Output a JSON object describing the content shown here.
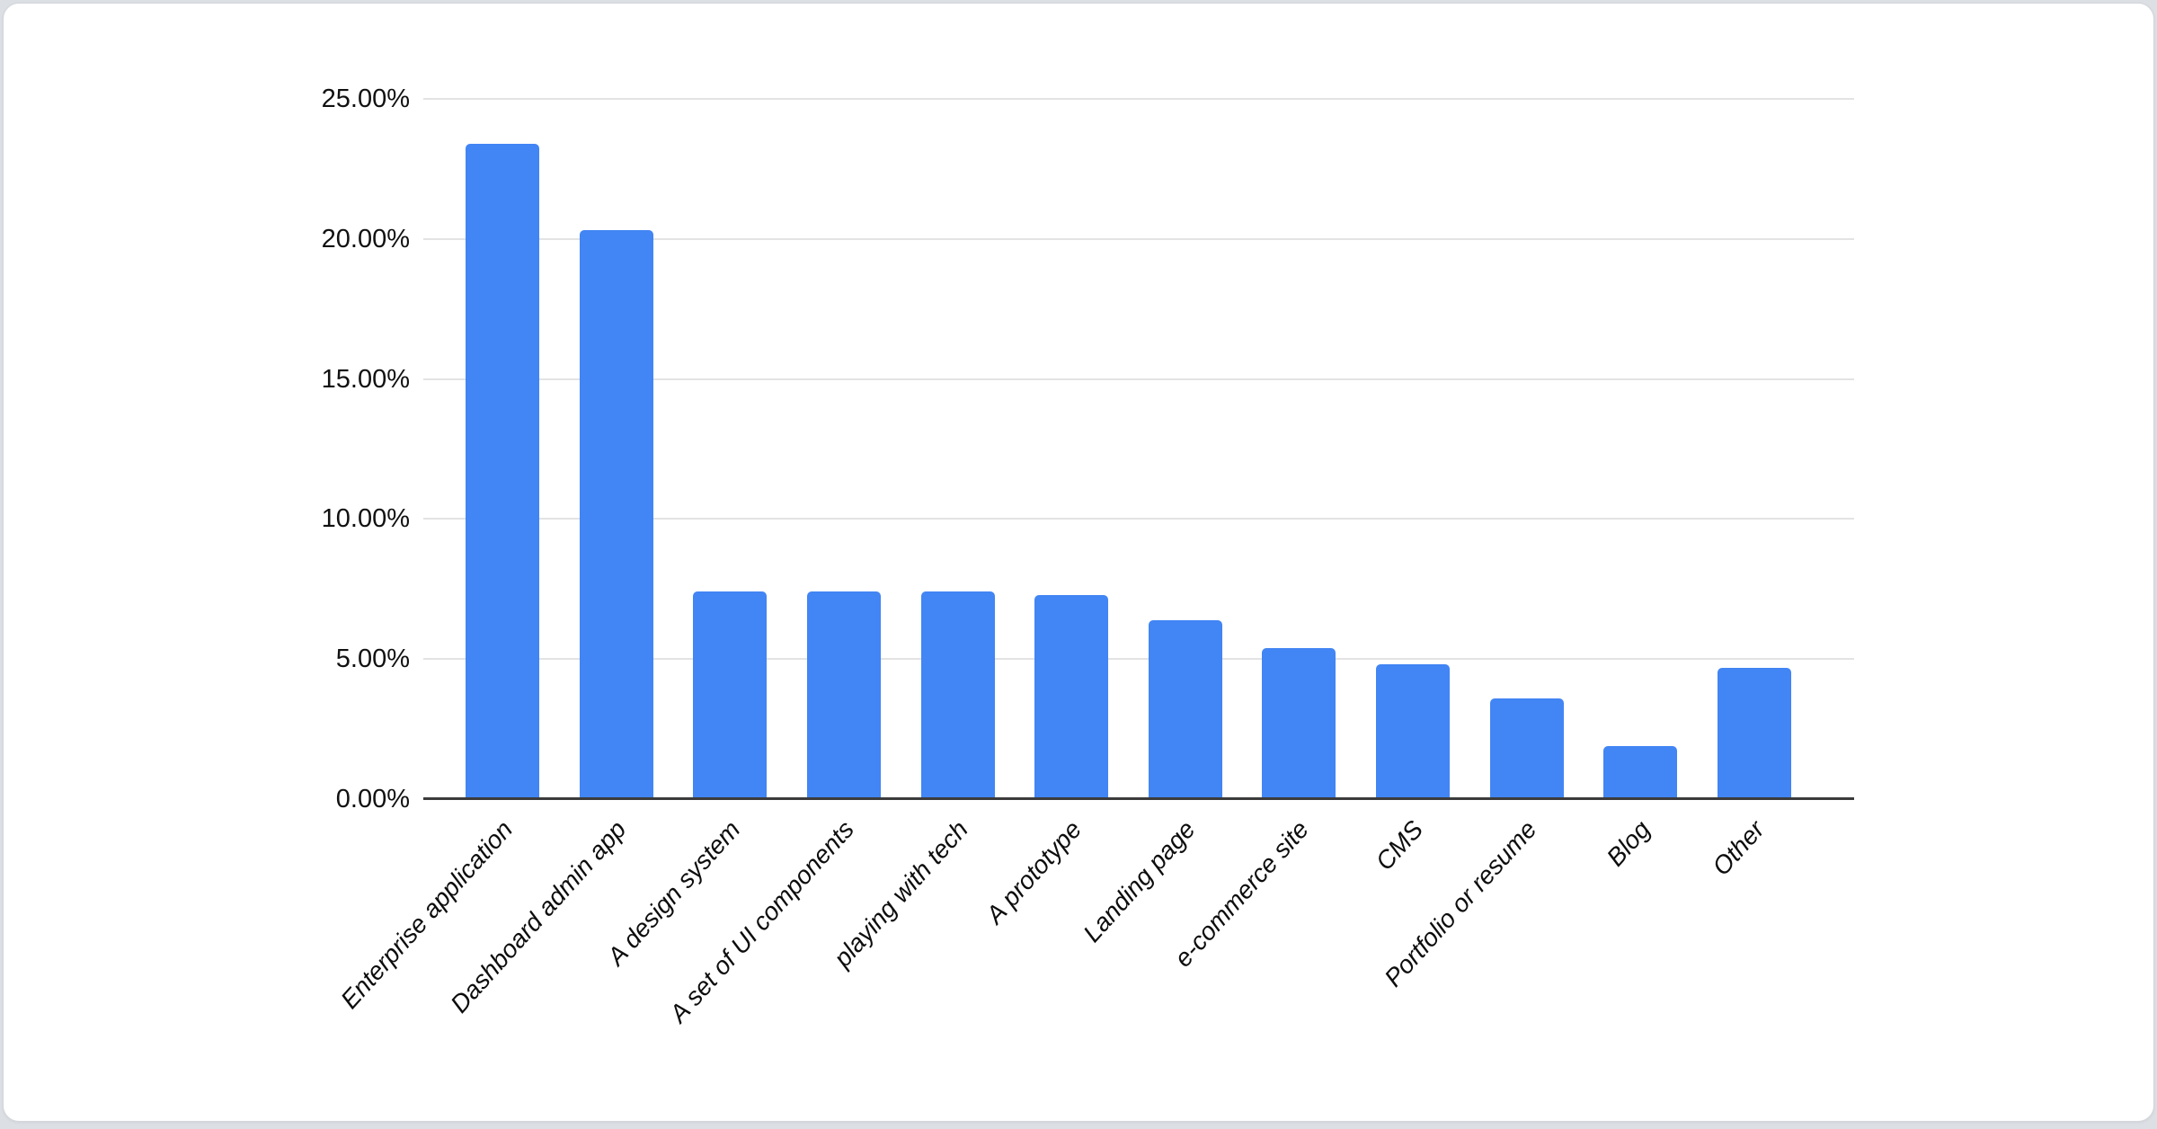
{
  "page": {
    "background_color": "#dce0e4",
    "card_background_color": "#ffffff"
  },
  "chart_data": {
    "type": "bar",
    "title": "",
    "xlabel": "",
    "ylabel": "",
    "legend_position": "none",
    "grid": true,
    "bar_color": "#4285f4",
    "gridline_color": "#e3e3e3",
    "baseline_color": "#3b3b3b",
    "ylim": [
      0,
      25
    ],
    "yticks": [
      {
        "value": 0,
        "label": "0.00%"
      },
      {
        "value": 5,
        "label": "5.00%"
      },
      {
        "value": 10,
        "label": "10.00%"
      },
      {
        "value": 15,
        "label": "15.00%"
      },
      {
        "value": 20,
        "label": "20.00%"
      },
      {
        "value": 25,
        "label": "25.00%"
      }
    ],
    "categories": [
      "Enterprise application",
      "Dashboard admin app",
      "A design system",
      "A set of UI components",
      "playing with tech",
      "A prototype",
      "Landing page",
      "e-commerce site",
      "CMS",
      "Portfolio or resume",
      "Blog",
      "Other"
    ],
    "values": [
      23.4,
      20.3,
      7.4,
      7.4,
      7.4,
      7.3,
      6.4,
      5.4,
      4.8,
      3.6,
      1.9,
      4.7
    ]
  }
}
